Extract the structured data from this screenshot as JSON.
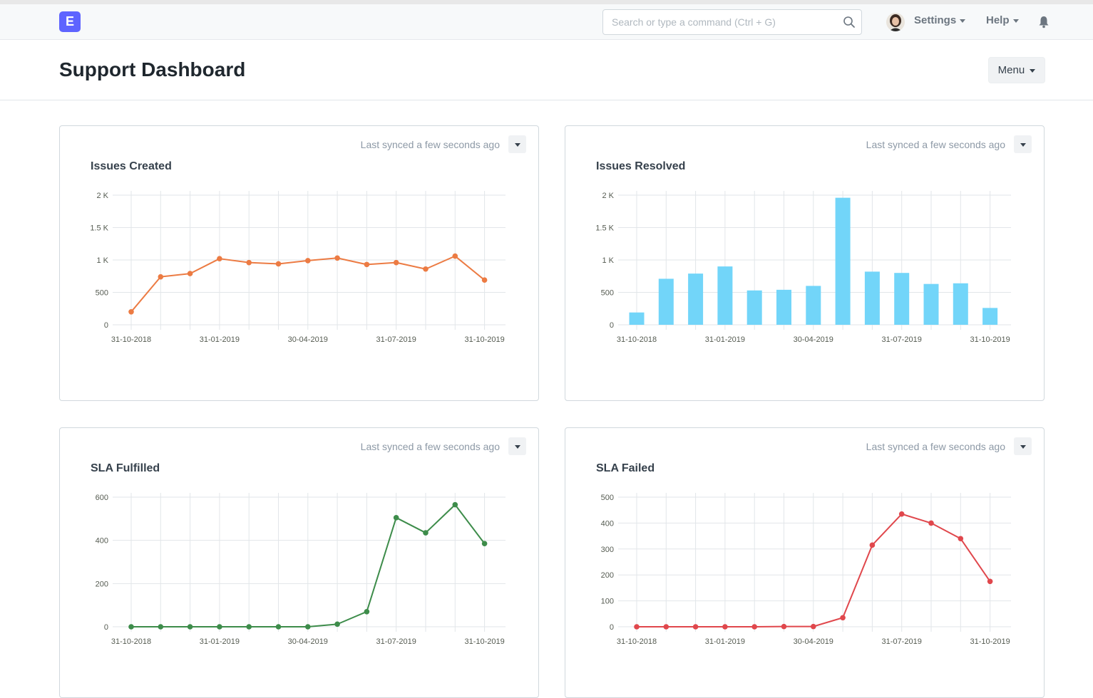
{
  "app": {
    "logo_letter": "E"
  },
  "navbar": {
    "search_placeholder": "Search or type a command (Ctrl + G)",
    "settings_label": "Settings",
    "help_label": "Help"
  },
  "page": {
    "title": "Support Dashboard",
    "menu_label": "Menu"
  },
  "chart_data": [
    {
      "type": "line",
      "title": "Issues Created",
      "sync_text": "Last synced a few seconds ago",
      "color": "#ec7b43",
      "x_tick_labels": [
        "31-10-2018",
        "31-01-2019",
        "30-04-2019",
        "31-07-2019",
        "31-10-2019"
      ],
      "y_tick_labels": [
        "0",
        "500",
        "1 K",
        "1.5 K",
        "2 K"
      ],
      "ylim": [
        0,
        2000
      ],
      "values": [
        200,
        740,
        790,
        1020,
        960,
        940,
        990,
        1030,
        930,
        960,
        860,
        1060,
        690
      ]
    },
    {
      "type": "bar",
      "title": "Issues Resolved",
      "sync_text": "Last synced a few seconds ago",
      "color": "#72d5f9",
      "x_tick_labels": [
        "31-10-2018",
        "31-01-2019",
        "30-04-2019",
        "31-07-2019",
        "31-10-2019"
      ],
      "y_tick_labels": [
        "0",
        "500",
        "1 K",
        "1.5 K",
        "2 K"
      ],
      "ylim": [
        0,
        2000
      ],
      "values": [
        190,
        710,
        790,
        900,
        530,
        540,
        600,
        1960,
        820,
        800,
        630,
        640,
        260
      ]
    },
    {
      "type": "line",
      "title": "SLA Fulfilled",
      "sync_text": "Last synced a few seconds ago",
      "color": "#3d8c4a",
      "x_tick_labels": [
        "31-10-2018",
        "31-01-2019",
        "30-04-2019",
        "31-07-2019",
        "31-10-2019"
      ],
      "y_tick_labels": [
        "0",
        "200",
        "400",
        "600"
      ],
      "ylim": [
        0,
        600
      ],
      "values": [
        0,
        0,
        0,
        0,
        0,
        0,
        0,
        12,
        70,
        505,
        435,
        565,
        385
      ]
    },
    {
      "type": "line",
      "title": "SLA Failed",
      "sync_text": "Last synced a few seconds ago",
      "color": "#e0474c",
      "x_tick_labels": [
        "31-10-2018",
        "31-01-2019",
        "30-04-2019",
        "31-07-2019",
        "31-10-2019"
      ],
      "y_tick_labels": [
        "0",
        "100",
        "200",
        "300",
        "400",
        "500"
      ],
      "ylim": [
        0,
        500
      ],
      "values": [
        0,
        0,
        0,
        0,
        0,
        1,
        1,
        35,
        315,
        435,
        400,
        340,
        175
      ]
    }
  ]
}
